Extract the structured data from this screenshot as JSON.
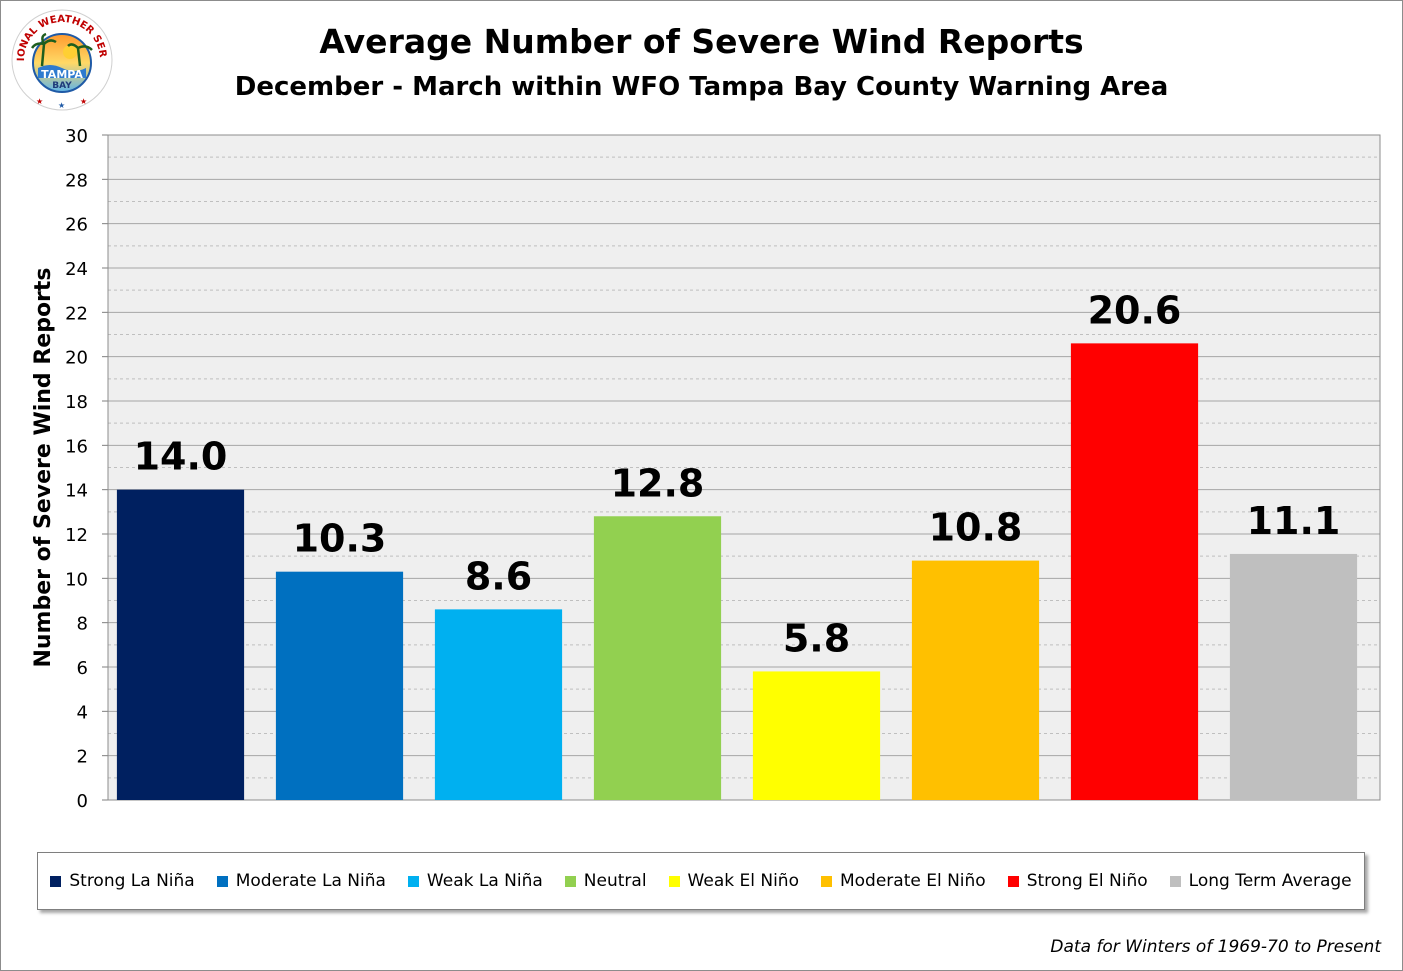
{
  "logo": {
    "arc_text": "NATIONAL WEATHER SERVICE",
    "center_text_1": "TAMPA",
    "center_text_2": "BAY"
  },
  "chart_data": {
    "type": "bar",
    "title": "Average Number of Severe Wind Reports",
    "subtitle": "December - March within WFO Tampa Bay County Warning Area",
    "ylabel": "Number of Severe Wind Reports",
    "xlabel": "",
    "ylim": [
      0,
      30
    ],
    "ytick_step": 2,
    "grid": true,
    "legend_position": "bottom",
    "categories": [
      "Strong La Niña",
      "Moderate La Niña",
      "Weak La Niña",
      "Neutral",
      "Weak El Niño",
      "Moderate El Niño",
      "Strong El Niño",
      "Long Term Average"
    ],
    "values": [
      14.0,
      10.3,
      8.6,
      12.8,
      5.8,
      10.8,
      20.6,
      11.1
    ],
    "value_labels": [
      "14.0",
      "10.3",
      "8.6",
      "12.8",
      "5.8",
      "10.8",
      "20.6",
      "11.1"
    ],
    "colors": [
      "#002060",
      "#0070c0",
      "#00b0f0",
      "#92d050",
      "#ffff00",
      "#ffc000",
      "#ff0000",
      "#bfbfbf"
    ]
  },
  "footnote": "Data for Winters of 1969-70 to Present"
}
